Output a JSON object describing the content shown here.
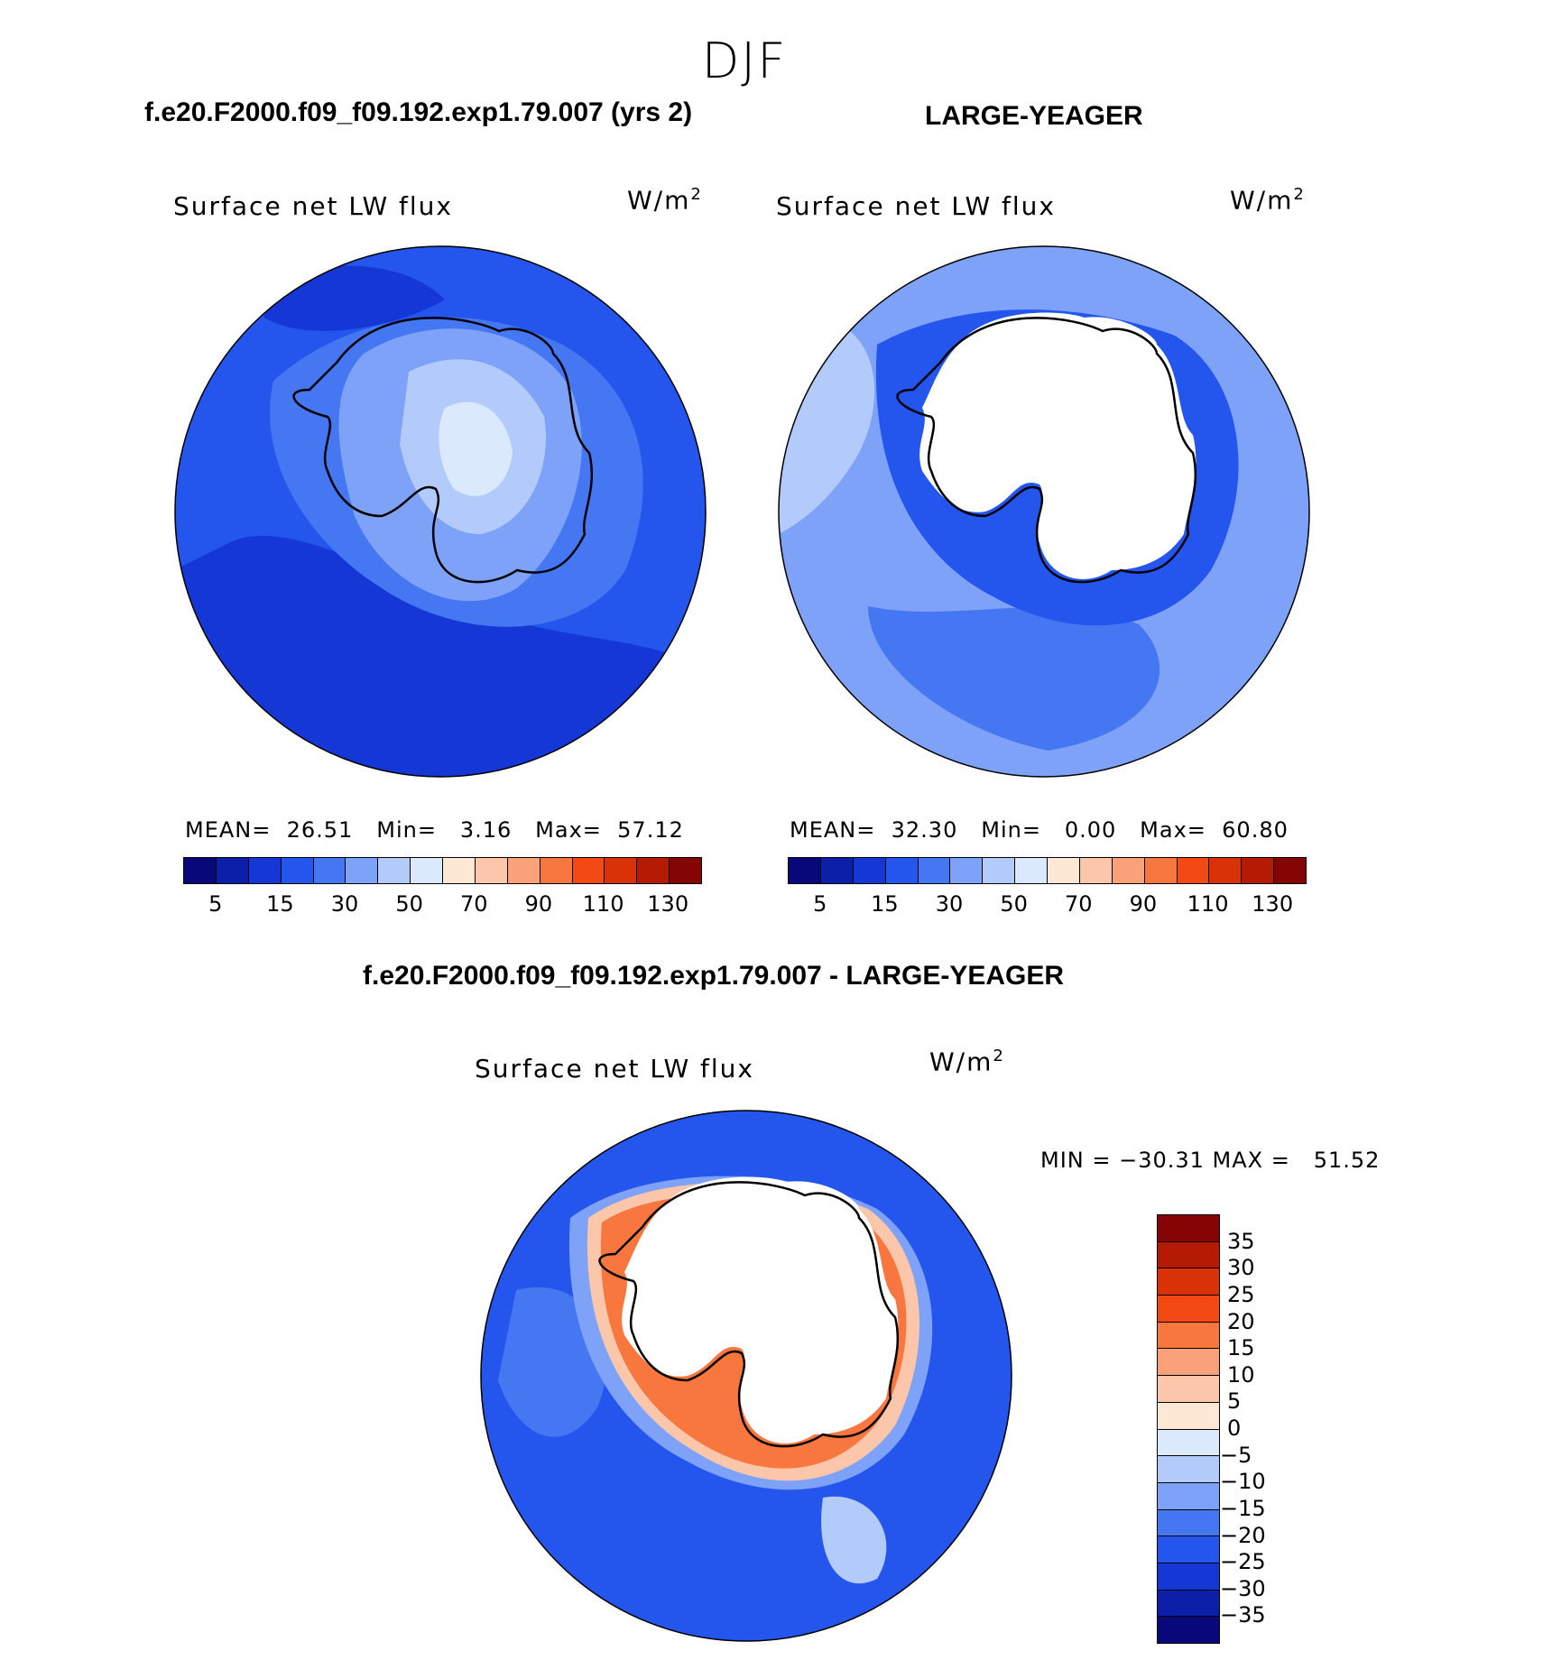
{
  "season": "DJF",
  "panels": [
    {
      "case_title": "f.e20.F2000.f09_f09.192.exp1.79.007 (yrs 2)",
      "variable": "Surface net LW flux",
      "units_base": "W/m",
      "units_sup": "2",
      "stats": {
        "mean_label": "MEAN=",
        "mean": "26.51",
        "min_label": "Min=",
        "min": "3.16",
        "max_label": "Max=",
        "max": "57.12"
      }
    },
    {
      "case_title": "LARGE-YEAGER",
      "variable": "Surface net LW flux",
      "units_base": "W/m",
      "units_sup": "2",
      "stats": {
        "mean_label": "MEAN=",
        "mean": "32.30",
        "min_label": "Min=",
        "min": "0.00",
        "max_label": "Max=",
        "max": "60.80"
      }
    },
    {
      "case_title": "f.e20.F2000.f09_f09.192.exp1.79.007 - LARGE-YEAGER",
      "variable": "Surface net LW flux",
      "units_base": "W/m",
      "units_sup": "2",
      "stats_line": "MIN = −30.31 MAX =   51.52"
    }
  ],
  "abs_colorbar": {
    "labels": [
      "5",
      "15",
      "30",
      "50",
      "70",
      "90",
      "110",
      "130"
    ],
    "colors": [
      "#08087a",
      "#0b1fa8",
      "#1437d6",
      "#2456ee",
      "#4577f2",
      "#7ea2f8",
      "#b3cbfb",
      "#dbe9fd",
      "#fde8d6",
      "#fcc6aa",
      "#fba17a",
      "#f7773f",
      "#f24a12",
      "#d93206",
      "#b51b04",
      "#850505"
    ]
  },
  "diff_colorbar": {
    "labels": [
      "35",
      "30",
      "25",
      "20",
      "15",
      "10",
      "5",
      "0",
      "−5",
      "−10",
      "−15",
      "−20",
      "−25",
      "−30",
      "−35"
    ],
    "colors": [
      "#850505",
      "#b51b04",
      "#d93206",
      "#f24a12",
      "#f7773f",
      "#fba17a",
      "#fcc6aa",
      "#fde8d6",
      "#dbe9fd",
      "#b3cbfb",
      "#7ea2f8",
      "#4577f2",
      "#2456ee",
      "#1437d6",
      "#0b1fa8",
      "#08087a"
    ]
  },
  "map_colors": {
    "deep": "#1437d6",
    "mid": "#2456ee",
    "light": "#4577f2",
    "pale": "#7ea2f8",
    "paler": "#b3cbfb",
    "palest": "#dbe9fd",
    "red1": "#fcc6aa",
    "red2": "#f7773f",
    "red3": "#d93206",
    "land_blank": "#ffffff",
    "coast": "#000000"
  }
}
